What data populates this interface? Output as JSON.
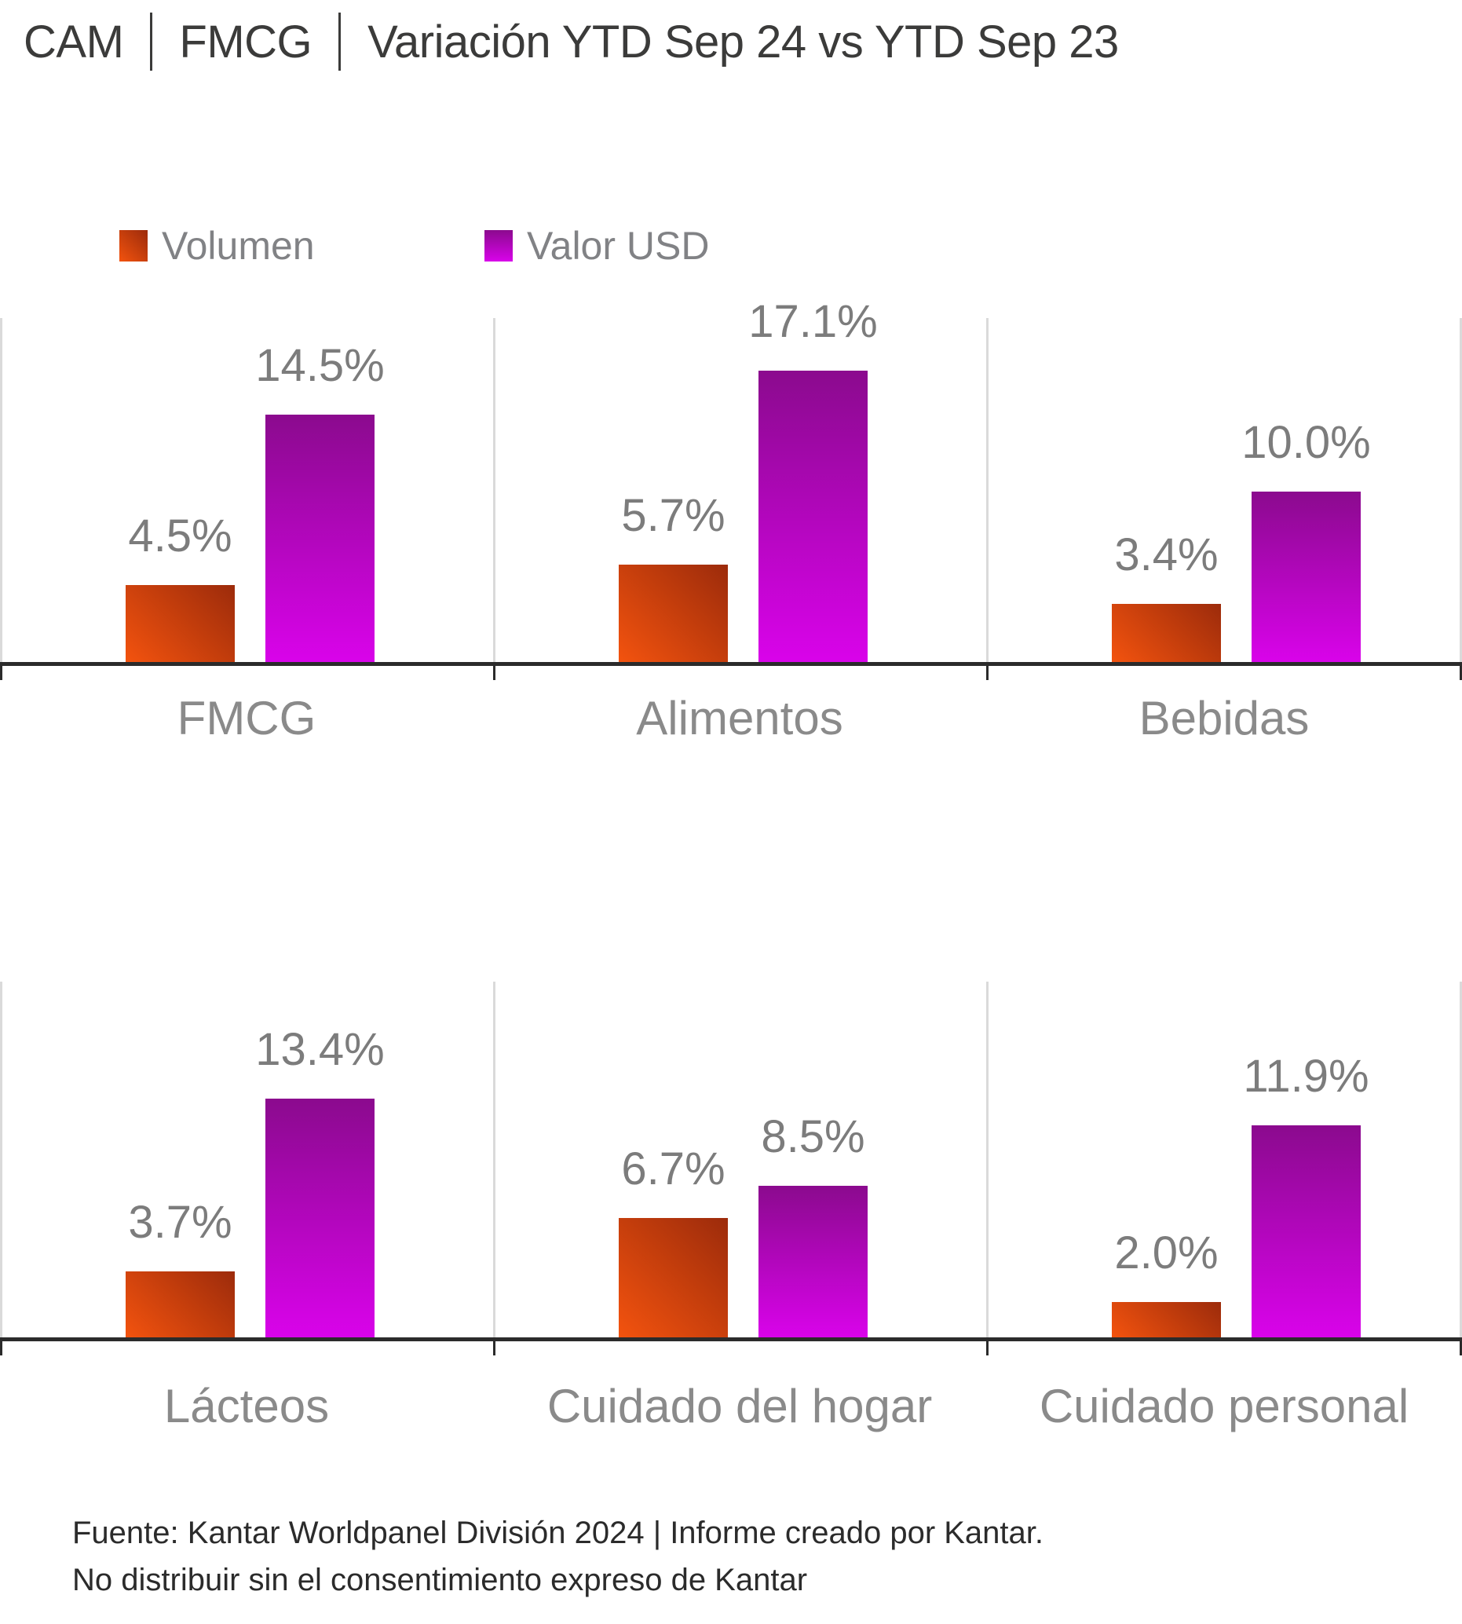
{
  "header": {
    "segments": [
      "CAM",
      "FMCG",
      "Variación YTD Sep 24 vs YTD Sep 23"
    ]
  },
  "legend": {
    "items": [
      {
        "label": "Volumen"
      },
      {
        "label": "Valor USD"
      }
    ]
  },
  "chart_data": {
    "type": "bar",
    "title": "CAM | FMCG | Variación YTD Sep 24 vs YTD Sep 23",
    "value_unit": "%",
    "data_labels": "one_decimal_percent",
    "legend_position": "top-left",
    "grid": "panel-left-borders",
    "ylim": [
      0,
      18
    ],
    "series_names": [
      "Volumen",
      "Valor USD"
    ],
    "rows": [
      {
        "categories": [
          "FMCG",
          "Alimentos",
          "Bebidas"
        ],
        "series": [
          {
            "name": "Volumen",
            "values": [
              4.5,
              5.7,
              3.4
            ]
          },
          {
            "name": "Valor USD",
            "values": [
              14.5,
              17.1,
              10.0
            ]
          }
        ]
      },
      {
        "categories": [
          "Lácteos",
          "Cuidado del hogar",
          "Cuidado personal"
        ],
        "series": [
          {
            "name": "Volumen",
            "values": [
              3.7,
              6.7,
              2.0
            ]
          },
          {
            "name": "Valor USD",
            "values": [
              13.4,
              8.5,
              11.9
            ]
          }
        ]
      }
    ]
  },
  "colors": {
    "volumen_gradient_bright": "#F3530E",
    "volumen_gradient_dark": "#9C2B0B",
    "valor_gradient_bright": "#D903EA",
    "valor_gradient_dark": "#8B0A8E",
    "axis": "#2B2B2B",
    "gridline": "#DADADA",
    "value_label": "#7C7C7C",
    "category_label": "#8A8A8A",
    "legend_label": "#818285",
    "title": "#3B3B3A",
    "footer": "#2B2B2B"
  },
  "footer": {
    "line1": "Fuente: Kantar Worldpanel División 2024 | Informe creado por Kantar.",
    "line2": "No distribuir sin el consentimiento expreso de Kantar"
  }
}
